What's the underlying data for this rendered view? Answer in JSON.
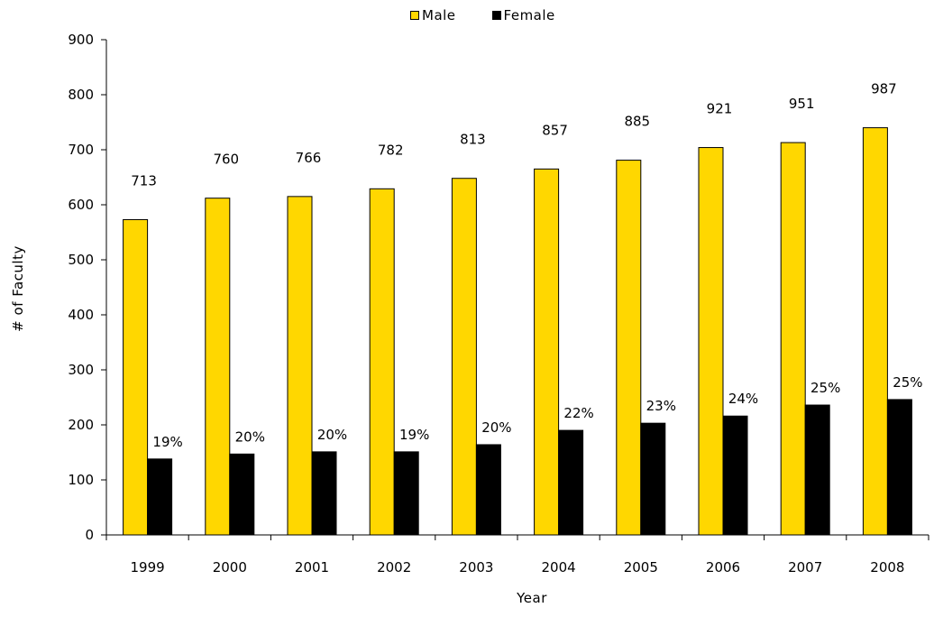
{
  "chart_data": {
    "type": "bar",
    "title": "",
    "xlabel": "Year",
    "ylabel": "# of Faculty",
    "ylim": [
      0,
      900
    ],
    "yticks": [
      0,
      100,
      200,
      300,
      400,
      500,
      600,
      700,
      800,
      900
    ],
    "categories": [
      "1999",
      "2000",
      "2001",
      "2002",
      "2003",
      "2004",
      "2005",
      "2006",
      "2007",
      "2008"
    ],
    "series": [
      {
        "name": "Male",
        "color": "#FFD700",
        "values": [
          573,
          612,
          615,
          629,
          648,
          665,
          681,
          704,
          713,
          740
        ]
      },
      {
        "name": "Female",
        "color": "#000000",
        "values": [
          138,
          147,
          151,
          151,
          164,
          190,
          203,
          216,
          236,
          246
        ]
      }
    ],
    "total_labels": [
      "713",
      "760",
      "766",
      "782",
      "813",
      "857",
      "885",
      "921",
      "951",
      "987"
    ],
    "female_pct_labels": [
      "19%",
      "20%",
      "20%",
      "19%",
      "20%",
      "22%",
      "23%",
      "24%",
      "25%",
      "25%"
    ],
    "legend_position": "top-center",
    "grid": false
  }
}
